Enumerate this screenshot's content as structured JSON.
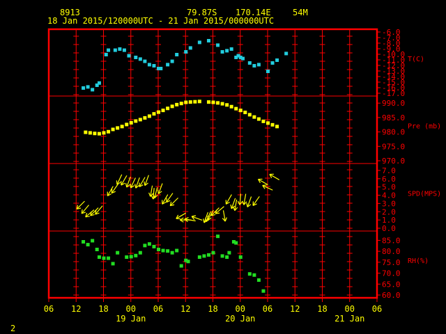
{
  "header": {
    "station": "8913",
    "lat": "79.87S",
    "lon": "170.14E",
    "elev": "54M",
    "period": "18 Jan 2015/120000UTC - 21 Jan 2015/000000UTC",
    "page_number": "2"
  },
  "colors": {
    "background": "#000000",
    "frame": "#ff0000",
    "labels": "#ffff00",
    "temperature": "#22ccdd",
    "pressure": "#ffff00",
    "wind": "#ffff00",
    "rh": "#22dd22"
  },
  "chart_data": {
    "type": "scatter",
    "x_unit": "hours since 18 Jan 2015 06 UTC",
    "x_range": [
      0,
      72
    ],
    "x_ticks": [
      "06",
      "12",
      "18",
      "00",
      "06",
      "12",
      "18",
      "00",
      "06",
      "12",
      "18",
      "00",
      "06"
    ],
    "date_labels": [
      "19 Jan",
      "20 Jan",
      "21 Jan"
    ],
    "panels": [
      {
        "name": "temperature",
        "label": "T(C)",
        "range": [
          -17,
          -6
        ],
        "ticks": [
          "-6.0",
          "-7.0",
          "-8.0",
          "-9.0",
          "-10.0",
          "-11.0",
          "-12.0",
          "-13.0",
          "-14.0",
          "-15.0",
          "-16.0",
          "-17.0"
        ],
        "points": [
          [
            7.5,
            -16.0
          ],
          [
            8.5,
            -15.8
          ],
          [
            9.5,
            -16.3
          ],
          [
            10.5,
            -15.5
          ],
          [
            11,
            -15.1
          ],
          [
            12.5,
            -10.0
          ],
          [
            13,
            -9.2
          ],
          [
            14.5,
            -9.2
          ],
          [
            15.5,
            -9.0
          ],
          [
            16.5,
            -9.2
          ],
          [
            17.5,
            -10.2
          ],
          [
            19,
            -10.5
          ],
          [
            20,
            -10.8
          ],
          [
            21,
            -11.2
          ],
          [
            22,
            -11.8
          ],
          [
            23,
            -12.0
          ],
          [
            24,
            -12.5
          ],
          [
            24.5,
            -12.5
          ],
          [
            26,
            -11.8
          ],
          [
            27,
            -11.2
          ],
          [
            28,
            -10.0
          ],
          [
            30,
            -9.5
          ],
          [
            31,
            -8.8
          ],
          [
            33,
            -7.8
          ],
          [
            35,
            -7.5
          ],
          [
            37,
            -8.3
          ],
          [
            38,
            -9.5
          ],
          [
            39,
            -9.3
          ],
          [
            40,
            -9.0
          ],
          [
            41,
            -10.5
          ],
          [
            41.5,
            -10.2
          ],
          [
            42,
            -10.5
          ],
          [
            42.5,
            -10.7
          ],
          [
            44,
            -11.5
          ],
          [
            45,
            -12.0
          ],
          [
            46,
            -11.8
          ],
          [
            48,
            -13.0
          ],
          [
            49,
            -11.5
          ],
          [
            50,
            -11.0
          ],
          [
            52,
            -9.8
          ]
        ]
      },
      {
        "name": "pressure",
        "label": "Pre (mb)",
        "range": [
          970,
          991.5
        ],
        "ticks": [
          "970.0",
          "975.0",
          "980.0",
          "985.0",
          "990.0"
        ],
        "points": [
          [
            8,
            980.0
          ],
          [
            9,
            979.8
          ],
          [
            10,
            979.6
          ],
          [
            11,
            979.5
          ],
          [
            12,
            979.8
          ],
          [
            13,
            980.2
          ],
          [
            14,
            981.0
          ],
          [
            15,
            981.5
          ],
          [
            16,
            982.0
          ],
          [
            17,
            982.7
          ],
          [
            18,
            983.3
          ],
          [
            19,
            983.9
          ],
          [
            20,
            984.4
          ],
          [
            21,
            985.0
          ],
          [
            22,
            985.6
          ],
          [
            23,
            986.4
          ],
          [
            24,
            987.0
          ],
          [
            25,
            987.6
          ],
          [
            26,
            988.3
          ],
          [
            27,
            989.0
          ],
          [
            28,
            989.6
          ],
          [
            29,
            990.0
          ],
          [
            30,
            990.4
          ],
          [
            31,
            990.5
          ],
          [
            32,
            990.6
          ],
          [
            33,
            990.7
          ],
          [
            35,
            990.5
          ],
          [
            36,
            990.4
          ],
          [
            37,
            990.2
          ],
          [
            38,
            989.9
          ],
          [
            39,
            989.5
          ],
          [
            40,
            988.9
          ],
          [
            41,
            988.2
          ],
          [
            42,
            987.6
          ],
          [
            43,
            986.9
          ],
          [
            44,
            986.1
          ],
          [
            45,
            985.3
          ],
          [
            46,
            984.6
          ],
          [
            47,
            983.8
          ],
          [
            48,
            983.2
          ],
          [
            49,
            982.6
          ],
          [
            50,
            982.0
          ]
        ]
      },
      {
        "name": "wind",
        "label": "SPD(MPS)",
        "range": [
          0,
          7.5
        ],
        "ticks": [
          "0.0",
          "1.0",
          "2.0",
          "3.0",
          "4.0",
          "5.0",
          "6.0",
          "7.0"
        ],
        "barbs": [
          [
            7,
            2.8,
            225
          ],
          [
            8,
            2.3,
            220
          ],
          [
            9,
            1.8,
            230
          ],
          [
            10,
            2.0,
            225
          ],
          [
            11,
            2.2,
            220
          ],
          [
            13.5,
            4.5,
            210
          ],
          [
            14.5,
            4.8,
            215
          ],
          [
            15.5,
            5.9,
            205
          ],
          [
            16.5,
            5.8,
            210
          ],
          [
            17.5,
            5.6,
            200
          ],
          [
            18.5,
            5.5,
            205
          ],
          [
            19.5,
            5.5,
            200
          ],
          [
            20.5,
            5.6,
            210
          ],
          [
            21.5,
            5.8,
            200
          ],
          [
            22.5,
            4.5,
            190
          ],
          [
            23,
            4.2,
            185
          ],
          [
            23.5,
            4.3,
            195
          ],
          [
            24.5,
            4.8,
            200
          ],
          [
            25.5,
            3.5,
            210
          ],
          [
            26.5,
            3.7,
            215
          ],
          [
            27.5,
            3.2,
            225
          ],
          [
            29,
            1.5,
            240
          ],
          [
            30,
            1.0,
            270
          ],
          [
            31,
            1.0,
            280
          ],
          [
            32.5,
            1.2,
            290
          ],
          [
            34.5,
            1.3,
            200
          ],
          [
            35,
            1.4,
            205
          ],
          [
            35.5,
            1.6,
            210
          ],
          [
            36.5,
            2.0,
            225
          ],
          [
            37.5,
            2.2,
            230
          ],
          [
            38.5,
            1.5,
            170
          ],
          [
            39.5,
            3.5,
            210
          ],
          [
            40.5,
            3.0,
            200
          ],
          [
            41,
            2.8,
            190
          ],
          [
            42,
            3.5,
            185
          ],
          [
            43,
            3.5,
            190
          ],
          [
            44,
            3.2,
            200
          ],
          [
            45.5,
            3.3,
            215
          ],
          [
            47,
            5.6,
            300
          ],
          [
            48,
            4.9,
            295
          ],
          [
            49.5,
            6.2,
            300
          ]
        ]
      },
      {
        "name": "rh",
        "label": "RH(%)",
        "range": [
          60,
          88
        ],
        "ticks": [
          "60.0",
          "65.0",
          "70.0",
          "75.0",
          "80.0",
          "85.0"
        ],
        "points": [
          [
            7.5,
            84.5
          ],
          [
            8.5,
            83.2
          ],
          [
            9.5,
            85.0
          ],
          [
            10.5,
            81.0
          ],
          [
            11,
            77.5
          ],
          [
            12,
            77.0
          ],
          [
            13,
            77.0
          ],
          [
            14,
            74.5
          ],
          [
            15,
            79.5
          ],
          [
            17,
            77.5
          ],
          [
            18,
            77.7
          ],
          [
            19,
            78.2
          ],
          [
            20,
            79.5
          ],
          [
            21,
            82.8
          ],
          [
            22,
            83.5
          ],
          [
            23,
            82.3
          ],
          [
            24,
            81.0
          ],
          [
            25,
            80.5
          ],
          [
            26,
            80.3
          ],
          [
            27,
            79.5
          ],
          [
            28,
            80.5
          ],
          [
            29,
            73.5
          ],
          [
            30,
            76.0
          ],
          [
            30.5,
            75.5
          ],
          [
            33,
            77.5
          ],
          [
            34,
            78.0
          ],
          [
            35,
            78.5
          ],
          [
            36,
            79.5
          ],
          [
            37,
            87.0
          ],
          [
            38,
            78.0
          ],
          [
            39,
            77.5
          ],
          [
            39.5,
            79.5
          ],
          [
            40.5,
            84.5
          ],
          [
            41,
            84.0
          ],
          [
            42,
            77.5
          ],
          [
            44,
            69.8
          ],
          [
            45,
            69.3
          ],
          [
            46,
            67.0
          ],
          [
            47,
            62.0
          ]
        ]
      }
    ]
  }
}
